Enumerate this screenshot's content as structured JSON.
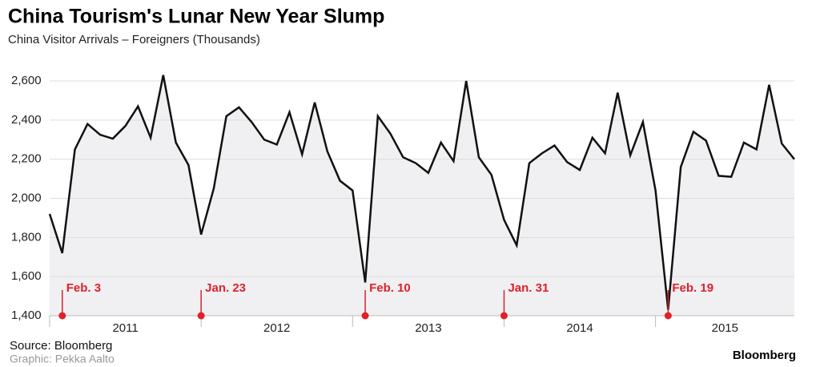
{
  "chart_data": {
    "type": "line",
    "title": "China Tourism's Lunar New Year Slump",
    "subtitle": "China Visitor Arrivals – Foreigners (Thousands)",
    "source": "Source: Bloomberg",
    "credit": "Graphic: Pekka Aalto",
    "brand": "Bloomberg",
    "year_labels": [
      "2011",
      "2012",
      "2013",
      "2014",
      "2015"
    ],
    "values": [
      1920,
      1720,
      2250,
      2380,
      2325,
      2305,
      2370,
      2470,
      2310,
      2630,
      2285,
      2170,
      1815,
      2050,
      2420,
      2465,
      2390,
      2300,
      2275,
      2440,
      2225,
      2490,
      2240,
      2090,
      2040,
      1570,
      2420,
      2330,
      2210,
      2180,
      2130,
      2285,
      2190,
      2600,
      2210,
      2120,
      1890,
      1760,
      2180,
      2230,
      2270,
      2185,
      2145,
      2310,
      2230,
      2540,
      2220,
      2390,
      2040,
      1430,
      2160,
      2340,
      2295,
      2115,
      2110,
      2285,
      2250,
      2580,
      2280,
      2200
    ],
    "color": "#111111",
    "area_color": "#f0f0f2",
    "ylim": [
      1400,
      2600
    ],
    "yticks": [
      {
        "value": 1400,
        "label": "1,400"
      },
      {
        "value": 1600,
        "label": "1,600"
      },
      {
        "value": 1800,
        "label": "1,800"
      },
      {
        "value": 2000,
        "label": "2,000"
      },
      {
        "value": 2200,
        "label": "2,200"
      },
      {
        "value": 2400,
        "label": "2,400"
      },
      {
        "value": 2600,
        "label": "2,600"
      }
    ],
    "grid": true,
    "events": [
      {
        "label": "Feb. 3",
        "index": 1
      },
      {
        "label": "Jan. 23",
        "index": 12
      },
      {
        "label": "Feb. 10",
        "index": 25
      },
      {
        "label": "Jan. 31",
        "index": 36
      },
      {
        "label": "Feb. 19",
        "index": 49
      }
    ],
    "event_color": "#e0202a"
  }
}
